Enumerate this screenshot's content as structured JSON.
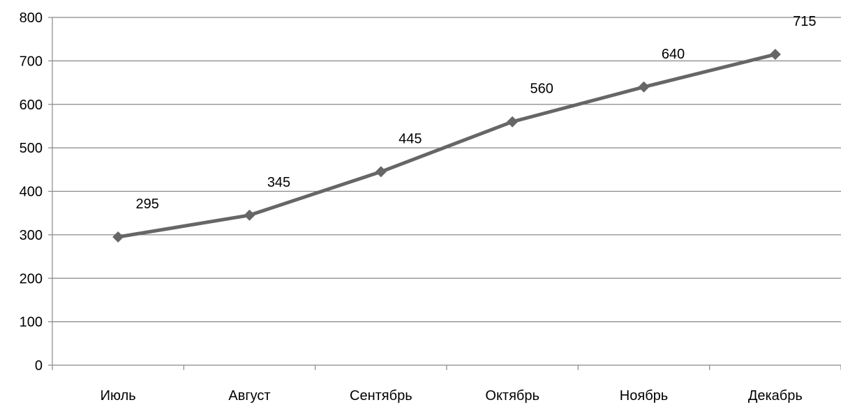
{
  "chart_data": {
    "type": "line",
    "categories": [
      "Июль",
      "Август",
      "Сентябрь",
      "Октябрь",
      "Ноябрь",
      "Декабрь"
    ],
    "series": [
      {
        "values": [
          295,
          345,
          445,
          560,
          640,
          715
        ],
        "color": "#666666",
        "marker": "diamond",
        "data_labels": [
          "295",
          "345",
          "445",
          "560",
          "640",
          "715"
        ]
      }
    ],
    "y_ticks": [
      "0",
      "100",
      "200",
      "300",
      "400",
      "500",
      "600",
      "700",
      "800"
    ],
    "ylim": [
      0,
      800
    ],
    "grid": true,
    "legend": "none",
    "gridline_color": "#888888",
    "axis_color": "#888888"
  }
}
